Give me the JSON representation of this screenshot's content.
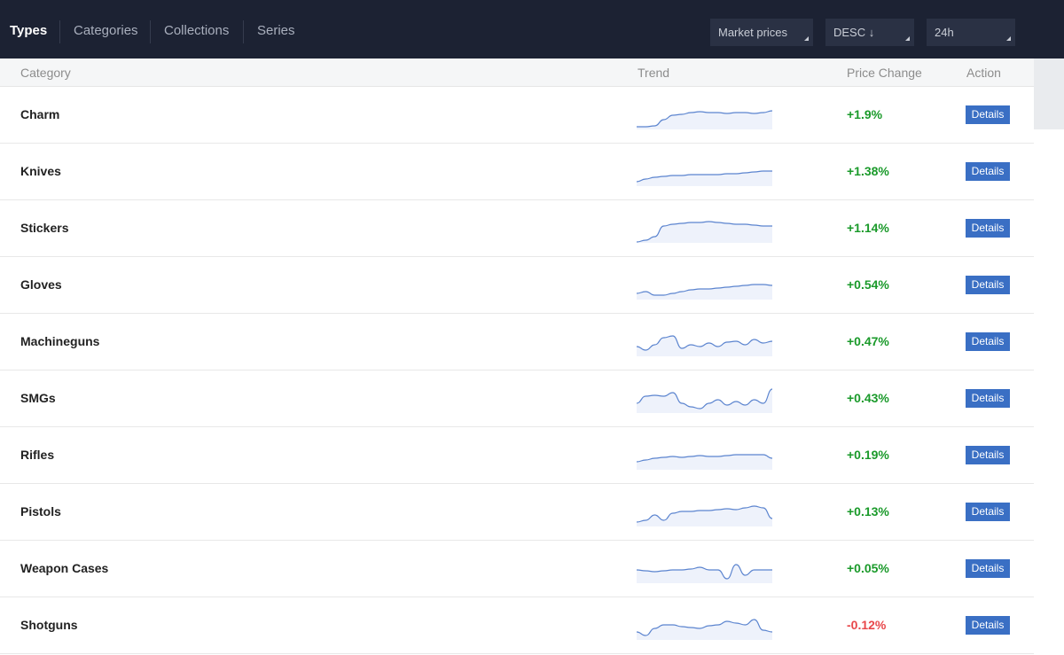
{
  "nav": {
    "tabs": [
      "Types",
      "Categories",
      "Collections",
      "Series"
    ],
    "active_tab": 0,
    "dropdowns": [
      "Market prices",
      "DESC ↓",
      "24h"
    ]
  },
  "table": {
    "headers": [
      "Category",
      "Trend",
      "Price Change",
      "Action"
    ],
    "rows": [
      {
        "category": "Charm",
        "price_change": "+1.9%",
        "action": "Details"
      },
      {
        "category": "Knives",
        "price_change": "+1.38%",
        "action": "Details"
      },
      {
        "category": "Stickers",
        "price_change": "+1.14%",
        "action": "Details"
      },
      {
        "category": "Gloves",
        "price_change": "+0.54%",
        "action": "Details"
      },
      {
        "category": "Machineguns",
        "price_change": "+0.47%",
        "action": "Details"
      },
      {
        "category": "SMGs",
        "price_change": "+0.43%",
        "action": "Details"
      },
      {
        "category": "Rifles",
        "price_change": "+0.19%",
        "action": "Details"
      },
      {
        "category": "Pistols",
        "price_change": "+0.13%",
        "action": "Details"
      },
      {
        "category": "Weapon Cases",
        "price_change": "+0.05%",
        "action": "Details"
      },
      {
        "category": "Shotguns",
        "price_change": "-0.12%",
        "action": "Details"
      }
    ]
  }
}
